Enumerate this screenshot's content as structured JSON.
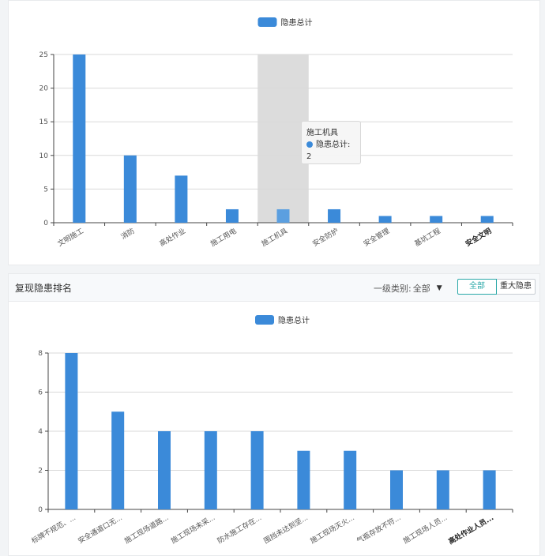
{
  "colors": {
    "bar": "#3b8ad9",
    "hover_bar": "#5b9fe0",
    "highlight": "#dcdcdc",
    "active_button": "#2aa8a8"
  },
  "chart_data": [
    {
      "type": "bar",
      "categories": [
        "文明施工",
        "消防",
        "高处作业",
        "施工用电",
        "施工机具",
        "安全防护",
        "安全管理",
        "基坑工程",
        "安全文明"
      ],
      "series": [
        {
          "name": "隐患总计",
          "values": [
            25,
            10,
            7,
            2,
            2,
            2,
            1,
            1,
            1
          ]
        }
      ],
      "ylim": [
        0,
        25
      ],
      "yticks": [
        0,
        5,
        10,
        15,
        20,
        25
      ],
      "grid": true,
      "legend": "top-center",
      "highlighted_category": "施工机具",
      "tooltip": {
        "title": "施工机具",
        "series_name": "隐患总计",
        "value": "2"
      }
    },
    {
      "type": "bar",
      "title": "复现隐患排名",
      "categories": [
        "标牌不规范、...",
        "安全通道口无...",
        "施工现场道路...",
        "施工现场未采...",
        "防水施工存在...",
        "围挡未达到坚...",
        "施工现场灭火...",
        "气瓶存放不符...",
        "施工现场人员...",
        "高处作业人员..."
      ],
      "series": [
        {
          "name": "隐患总计",
          "values": [
            8,
            5,
            4,
            4,
            4,
            3,
            3,
            2,
            2,
            2
          ]
        }
      ],
      "ylim": [
        0,
        8
      ],
      "yticks": [
        0,
        2,
        4,
        6,
        8
      ],
      "grid": true,
      "legend": "top-center"
    }
  ],
  "section2": {
    "title": "复现隐患排名",
    "filter_label": "一级类别:",
    "filter_value": "全部",
    "btn_all": "全部",
    "btn_major": "重大隐患"
  },
  "tooltip": {
    "title": "施工机具",
    "label": "隐患总计: 2"
  }
}
